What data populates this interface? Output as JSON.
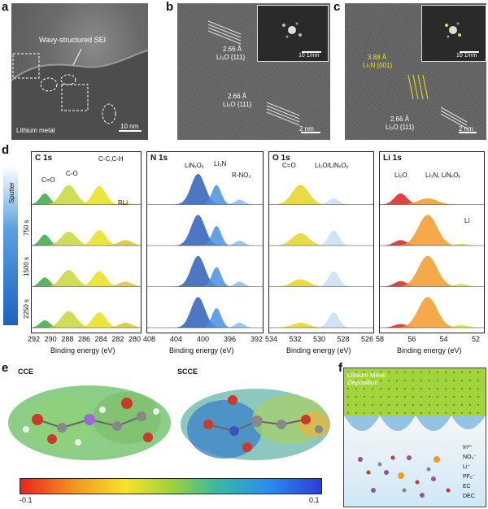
{
  "panels": {
    "a": {
      "letter": "a",
      "annotation": "Wavy-structured SEI",
      "bottom_text": "Lithium metal",
      "scale": "10 nm"
    },
    "b": {
      "letter": "b",
      "d1": "2.66 Å",
      "p1": "Li₂O {111}",
      "d2": "2.66 Å",
      "p2": "Li₂O {111}",
      "fft_scale": "10 1/nm",
      "scale": "2 nm"
    },
    "c": {
      "letter": "c",
      "d1": "3.88 Å",
      "p1": "Li₃N {001}",
      "d2": "2.66 Å",
      "p2": "Li₂O {111}",
      "fft_scale": "10 1/nm",
      "scale": "2 nm"
    },
    "d": {
      "letter": "d"
    },
    "e": {
      "letter": "e",
      "cce": "CCE",
      "scce": "SCCE",
      "cb_min": "-0.1",
      "cb_max": "0.1"
    },
    "f": {
      "letter": "f",
      "title": "Lithium Metal Deposition",
      "legend": [
        "In³⁺",
        "NO₃⁻",
        "Li⁺",
        "PF₆⁻",
        "EC",
        "DEC"
      ]
    }
  },
  "sputter": {
    "label": "Sputter",
    "times": [
      "750 s",
      "1500 s",
      "2250 s"
    ]
  },
  "xps": [
    {
      "title": "C 1s",
      "xlabel": "Binding energy (eV)",
      "ticks": [
        "292",
        "290",
        "288",
        "286",
        "284",
        "282",
        "280"
      ],
      "peaks": [
        {
          "text": "C=O"
        },
        {
          "text": "C-O"
        },
        {
          "text": "C-C,C-H"
        },
        {
          "text": "RLi"
        }
      ],
      "colors": [
        "#3da847",
        "#c8d83a",
        "#e9e01e",
        "#d9c52a"
      ]
    },
    {
      "title": "N 1s",
      "xlabel": "Binding energy (eV)",
      "ticks": [
        "408",
        "404",
        "400",
        "396",
        "392"
      ],
      "peaks": [
        {
          "text": "LiNₓOᵧ"
        },
        {
          "text": "Li₃N"
        },
        {
          "text": "R-NO₂"
        }
      ],
      "colors": [
        "#2c5fb8",
        "#4a8fe0",
        "#86bdf0"
      ]
    },
    {
      "title": "O 1s",
      "xlabel": "Binding energy (eV)",
      "ticks": [
        "534",
        "532",
        "530",
        "528",
        "526"
      ],
      "peaks": [
        {
          "text": "C=O"
        },
        {
          "text": "Li₂O/LiNₓOᵧ"
        }
      ],
      "colors": [
        "#e6d323",
        "#c9def2"
      ]
    },
    {
      "title": "Li 1s",
      "xlabel": "Binding energy (eV)",
      "ticks": [
        "58",
        "56",
        "54",
        "52"
      ],
      "peaks": [
        {
          "text": "Li₂O"
        },
        {
          "text": "Li₃N, LiNₓOᵧ"
        },
        {
          "text": "Li"
        }
      ],
      "colors": [
        "#d8231e",
        "#f39a2a",
        "#d6df3a"
      ]
    }
  ]
}
